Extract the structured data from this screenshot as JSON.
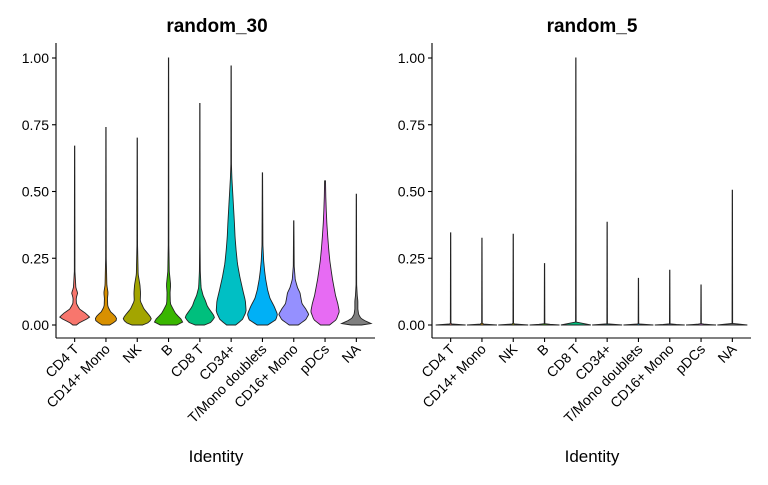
{
  "chart_data": [
    {
      "type": "violin",
      "title": "random_30",
      "xlabel": "Identity",
      "ylabel": "",
      "ylim": [
        0,
        1.05
      ],
      "yticks": [
        "0.00",
        "0.25",
        "0.50",
        "0.75",
        "1.00"
      ],
      "legend": "none",
      "categories": [
        "CD4 T",
        "CD14+ Mono",
        "NK",
        "B",
        "CD8 T",
        "CD34+",
        "T/Mono doublets",
        "CD16+ Mono",
        "pDCs",
        "NA"
      ],
      "colors": [
        "#F8766D",
        "#D89000",
        "#A3A500",
        "#39B600",
        "#00BF7D",
        "#00BFC4",
        "#00B0F6",
        "#9590FF",
        "#E76BF3",
        "#FF62BC"
      ],
      "na_color": "#7F7F7F",
      "violins": [
        {
          "max": 0.67,
          "profile": [
            [
              0,
              0.12
            ],
            [
              0.01,
              0.35
            ],
            [
              0.02,
              0.75
            ],
            [
              0.03,
              1.0
            ],
            [
              0.045,
              0.7
            ],
            [
              0.06,
              0.32
            ],
            [
              0.08,
              0.12
            ],
            [
              0.1,
              0.1
            ],
            [
              0.12,
              0.2
            ],
            [
              0.14,
              0.08
            ],
            [
              0.2,
              0.02
            ],
            [
              0.67,
              0.01
            ]
          ]
        },
        {
          "max": 0.74,
          "profile": [
            [
              0,
              0.25
            ],
            [
              0.01,
              0.55
            ],
            [
              0.02,
              0.75
            ],
            [
              0.035,
              0.6
            ],
            [
              0.05,
              0.3
            ],
            [
              0.07,
              0.12
            ],
            [
              0.1,
              0.1
            ],
            [
              0.12,
              0.14
            ],
            [
              0.15,
              0.06
            ],
            [
              0.25,
              0.02
            ],
            [
              0.74,
              0.01
            ]
          ]
        },
        {
          "max": 0.7,
          "profile": [
            [
              0,
              0.35
            ],
            [
              0.01,
              0.8
            ],
            [
              0.025,
              0.95
            ],
            [
              0.04,
              0.75
            ],
            [
              0.06,
              0.45
            ],
            [
              0.09,
              0.2
            ],
            [
              0.12,
              0.22
            ],
            [
              0.15,
              0.18
            ],
            [
              0.19,
              0.06
            ],
            [
              0.3,
              0.02
            ],
            [
              0.7,
              0.01
            ]
          ]
        },
        {
          "max": 1.0,
          "profile": [
            [
              0,
              0.55
            ],
            [
              0.01,
              0.95
            ],
            [
              0.025,
              0.8
            ],
            [
              0.04,
              0.5
            ],
            [
              0.06,
              0.3
            ],
            [
              0.08,
              0.12
            ],
            [
              0.12,
              0.1
            ],
            [
              0.15,
              0.14
            ],
            [
              0.2,
              0.05
            ],
            [
              0.3,
              0.02
            ],
            [
              1.0,
              0.01
            ]
          ]
        },
        {
          "max": 0.83,
          "profile": [
            [
              0,
              0.3
            ],
            [
              0.01,
              0.75
            ],
            [
              0.03,
              1.0
            ],
            [
              0.05,
              0.75
            ],
            [
              0.07,
              0.5
            ],
            [
              0.09,
              0.38
            ],
            [
              0.11,
              0.22
            ],
            [
              0.14,
              0.08
            ],
            [
              0.2,
              0.03
            ],
            [
              0.3,
              0.015
            ],
            [
              0.83,
              0.01
            ]
          ]
        },
        {
          "max": 0.97,
          "profile": [
            [
              0,
              0.3
            ],
            [
              0.02,
              0.75
            ],
            [
              0.05,
              1.0
            ],
            [
              0.09,
              0.95
            ],
            [
              0.13,
              0.78
            ],
            [
              0.18,
              0.58
            ],
            [
              0.23,
              0.42
            ],
            [
              0.28,
              0.33
            ],
            [
              0.33,
              0.26
            ],
            [
              0.38,
              0.22
            ],
            [
              0.43,
              0.17
            ],
            [
              0.5,
              0.1
            ],
            [
              0.55,
              0.05
            ],
            [
              0.6,
              0.02
            ],
            [
              0.97,
              0.01
            ]
          ]
        },
        {
          "max": 0.57,
          "profile": [
            [
              0,
              0.35
            ],
            [
              0.02,
              0.9
            ],
            [
              0.04,
              1.0
            ],
            [
              0.07,
              0.78
            ],
            [
              0.1,
              0.5
            ],
            [
              0.13,
              0.35
            ],
            [
              0.17,
              0.22
            ],
            [
              0.2,
              0.15
            ],
            [
              0.24,
              0.08
            ],
            [
              0.3,
              0.03
            ],
            [
              0.57,
              0.01
            ]
          ]
        },
        {
          "max": 0.39,
          "profile": [
            [
              0,
              0.3
            ],
            [
              0.02,
              0.8
            ],
            [
              0.04,
              1.0
            ],
            [
              0.06,
              0.8
            ],
            [
              0.08,
              0.55
            ],
            [
              0.1,
              0.48
            ],
            [
              0.12,
              0.42
            ],
            [
              0.14,
              0.25
            ],
            [
              0.17,
              0.1
            ],
            [
              0.22,
              0.03
            ],
            [
              0.39,
              0.01
            ]
          ]
        },
        {
          "max": 0.54,
          "profile": [
            [
              0,
              0.3
            ],
            [
              0.02,
              0.75
            ],
            [
              0.05,
              0.95
            ],
            [
              0.08,
              0.85
            ],
            [
              0.11,
              0.7
            ],
            [
              0.14,
              0.6
            ],
            [
              0.17,
              0.5
            ],
            [
              0.2,
              0.42
            ],
            [
              0.24,
              0.32
            ],
            [
              0.28,
              0.25
            ],
            [
              0.33,
              0.18
            ],
            [
              0.38,
              0.12
            ],
            [
              0.43,
              0.08
            ],
            [
              0.48,
              0.05
            ],
            [
              0.54,
              0.03
            ]
          ]
        },
        {
          "max": 0.49,
          "profile": [
            [
              0,
              0.35
            ],
            [
              0.005,
              1.0
            ],
            [
              0.015,
              0.6
            ],
            [
              0.025,
              0.3
            ],
            [
              0.04,
              0.15
            ],
            [
              0.06,
              0.1
            ],
            [
              0.09,
              0.1
            ],
            [
              0.11,
              0.06
            ],
            [
              0.15,
              0.02
            ],
            [
              0.49,
              0.01
            ]
          ]
        }
      ]
    },
    {
      "type": "violin",
      "title": "random_5",
      "xlabel": "Identity",
      "ylabel": "",
      "ylim": [
        0,
        1.05
      ],
      "yticks": [
        "0.00",
        "0.25",
        "0.50",
        "0.75",
        "1.00"
      ],
      "legend": "none",
      "categories": [
        "CD4 T",
        "CD14+ Mono",
        "NK",
        "B",
        "CD8 T",
        "CD34+",
        "T/Mono doublets",
        "CD16+ Mono",
        "pDCs",
        "NA"
      ],
      "colors": [
        "#F8766D",
        "#D89000",
        "#A3A500",
        "#39B600",
        "#00BF7D",
        "#00BFC4",
        "#00B0F6",
        "#9590FF",
        "#E76BF3",
        "#FF62BC"
      ],
      "na_color": "#7F7F7F",
      "violins": [
        {
          "max": 0.345,
          "profile": [
            [
              0,
              1.0
            ],
            [
              0.004,
              0.02
            ],
            [
              0.345,
              0.01
            ]
          ]
        },
        {
          "max": 0.325,
          "profile": [
            [
              0,
              1.0
            ],
            [
              0.004,
              0.02
            ],
            [
              0.325,
              0.01
            ]
          ]
        },
        {
          "max": 0.34,
          "profile": [
            [
              0,
              1.0
            ],
            [
              0.004,
              0.02
            ],
            [
              0.34,
              0.01
            ]
          ]
        },
        {
          "max": 0.23,
          "profile": [
            [
              0,
              1.0
            ],
            [
              0.004,
              0.02
            ],
            [
              0.23,
              0.01
            ]
          ]
        },
        {
          "max": 1.0,
          "profile": [
            [
              0,
              1.0
            ],
            [
              0.004,
              0.02
            ],
            [
              1.0,
              0.01
            ]
          ]
        },
        {
          "max": 0.385,
          "profile": [
            [
              0,
              1.0
            ],
            [
              0.004,
              0.02
            ],
            [
              0.385,
              0.01
            ]
          ]
        },
        {
          "max": 0.175,
          "profile": [
            [
              0,
              1.0
            ],
            [
              0.004,
              0.02
            ],
            [
              0.175,
              0.01
            ]
          ]
        },
        {
          "max": 0.205,
          "profile": [
            [
              0,
              1.0
            ],
            [
              0.004,
              0.02
            ],
            [
              0.205,
              0.01
            ]
          ]
        },
        {
          "max": 0.15,
          "profile": [
            [
              0,
              1.0
            ],
            [
              0.004,
              0.02
            ],
            [
              0.15,
              0.01
            ]
          ]
        },
        {
          "max": 0.505,
          "profile": [
            [
              0,
              1.0
            ],
            [
              0.004,
              0.02
            ],
            [
              0.505,
              0.01
            ]
          ]
        }
      ]
    }
  ]
}
